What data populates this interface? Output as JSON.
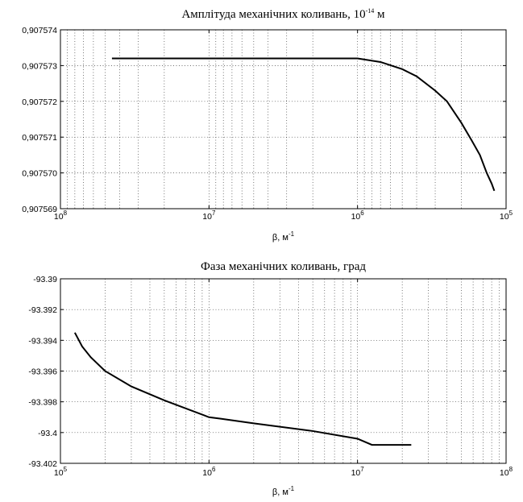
{
  "chart_data": [
    {
      "type": "line",
      "title_main": "Амплітуда механічних коливань, 10",
      "title_sup": "-14",
      "title_tail": " м",
      "xlabel_main": "β, м",
      "xlabel_sup": "-1",
      "x_scale": "log",
      "x_reversed": true,
      "xlim": [
        100000000,
        100000
      ],
      "ylim": [
        0.907569,
        0.907574
      ],
      "x_ticks": [
        {
          "value": 100000000,
          "base": "10",
          "exp": "8"
        },
        {
          "value": 10000000,
          "base": "10",
          "exp": "7"
        },
        {
          "value": 1000000,
          "base": "10",
          "exp": "6"
        },
        {
          "value": 100000,
          "base": "10",
          "exp": "5"
        }
      ],
      "y_ticks": [
        {
          "value": 0.907569,
          "label": "0,907569"
        },
        {
          "value": 0.90757,
          "label": "0,907570"
        },
        {
          "value": 0.907571,
          "label": "0,907571"
        },
        {
          "value": 0.907572,
          "label": "0,907572"
        },
        {
          "value": 0.907573,
          "label": "0,907573"
        },
        {
          "value": 0.907574,
          "label": "0,907574"
        }
      ],
      "grid": true,
      "series": [
        {
          "x": [
            45000000,
            20000000,
            10000000,
            5000000,
            2000000,
            1000000,
            700000,
            500000,
            400000,
            300000,
            250000,
            200000,
            170000,
            150000,
            135000,
            125000,
            120000
          ],
          "y": [
            0.9075732,
            0.9075732,
            0.9075732,
            0.9075732,
            0.9075732,
            0.9075732,
            0.9075731,
            0.9075729,
            0.9075727,
            0.9075723,
            0.907572,
            0.9075714,
            0.9075709,
            0.9075705,
            0.90757,
            0.9075697,
            0.9075695
          ]
        }
      ]
    },
    {
      "type": "line",
      "title_main": "Фаза механічних коливань, град",
      "xlabel_main": "β, м",
      "xlabel_sup": "-1",
      "x_scale": "log",
      "x_reversed": false,
      "xlim": [
        100000,
        100000000
      ],
      "ylim": [
        -93.402,
        -93.39
      ],
      "x_ticks": [
        {
          "value": 100000,
          "base": "10",
          "exp": "5"
        },
        {
          "value": 1000000,
          "base": "10",
          "exp": "6"
        },
        {
          "value": 10000000,
          "base": "10",
          "exp": "7"
        },
        {
          "value": 100000000,
          "base": "10",
          "exp": "8"
        }
      ],
      "y_ticks": [
        {
          "value": -93.402,
          "label": "-93.402"
        },
        {
          "value": -93.4,
          "label": "-93.4"
        },
        {
          "value": -93.398,
          "label": "-93.398"
        },
        {
          "value": -93.396,
          "label": "-93.396"
        },
        {
          "value": -93.394,
          "label": "-93.394"
        },
        {
          "value": -93.392,
          "label": "-93.392"
        },
        {
          "value": -93.39,
          "label": "-93.39"
        }
      ],
      "grid": true,
      "series": [
        {
          "x": [
            125000,
            140000,
            160000,
            200000,
            300000,
            500000,
            1000000,
            1200000,
            2000000,
            5000000,
            10000000,
            12500000,
            20000000,
            23000000
          ],
          "y": [
            -93.3935,
            -93.3944,
            -93.3951,
            -93.396,
            -93.397,
            -93.3979,
            -93.399,
            -93.3991,
            -93.3994,
            -93.3999,
            -93.4004,
            -93.4008,
            -93.4008,
            -93.4008
          ]
        }
      ]
    }
  ]
}
